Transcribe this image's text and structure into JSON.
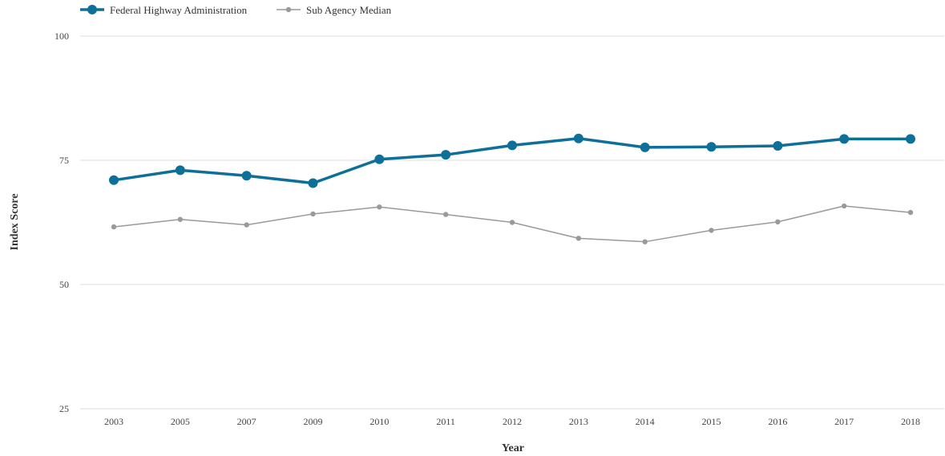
{
  "chart_data": {
    "type": "line",
    "title": "",
    "xlabel": "Year",
    "ylabel": "Index Score",
    "categories": [
      "2003",
      "2005",
      "2007",
      "2009",
      "2010",
      "2011",
      "2012",
      "2013",
      "2014",
      "2015",
      "2016",
      "2017",
      "2018"
    ],
    "ylim": [
      25,
      100
    ],
    "yticks": [
      "25",
      "50",
      "75",
      "100"
    ],
    "grid": true,
    "legend_position": "top-left",
    "series": [
      {
        "name": "Federal Highway Administration",
        "color": "#0e6f98",
        "values": [
          71.0,
          73.0,
          71.9,
          70.4,
          75.2,
          76.1,
          78.0,
          79.4,
          77.6,
          77.7,
          77.9,
          79.3,
          79.3
        ]
      },
      {
        "name": "Sub Agency Median",
        "color": "#9a9a9a",
        "values": [
          61.6,
          63.1,
          62.0,
          64.2,
          65.6,
          64.1,
          62.5,
          59.3,
          58.6,
          60.9,
          62.6,
          65.8,
          64.5
        ]
      }
    ]
  }
}
